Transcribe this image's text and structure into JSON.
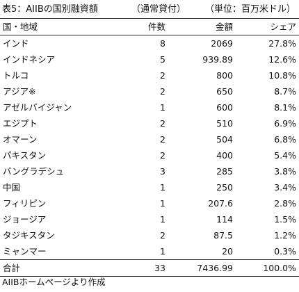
{
  "caption": {
    "title": "表5：AIIBの国別融資額",
    "type": "（通常貸付）",
    "unit": "（単位：百万米ドル）"
  },
  "headers": {
    "country": "国・地域",
    "count": "件数",
    "amount": "金額",
    "share": "シェア"
  },
  "rows": [
    {
      "country": "インド",
      "count": "8",
      "amount": "2069",
      "share": "27.8%"
    },
    {
      "country": "インドネシア",
      "count": "5",
      "amount": "939.89",
      "share": "12.6%"
    },
    {
      "country": "トルコ",
      "count": "2",
      "amount": "800",
      "share": "10.8%"
    },
    {
      "country": "アジア※",
      "count": "2",
      "amount": "650",
      "share": "8.7%"
    },
    {
      "country": "アゼルバイジャン",
      "count": "1",
      "amount": "600",
      "share": "8.1%"
    },
    {
      "country": "エジプト",
      "count": "2",
      "amount": "510",
      "share": "6.9%"
    },
    {
      "country": "オマーン",
      "count": "2",
      "amount": "504",
      "share": "6.8%"
    },
    {
      "country": "パキスタン",
      "count": "2",
      "amount": "400",
      "share": "5.4%"
    },
    {
      "country": "バングラデシュ",
      "count": "3",
      "amount": "285",
      "share": "3.8%"
    },
    {
      "country": "中国",
      "count": "1",
      "amount": "250",
      "share": "3.4%"
    },
    {
      "country": "フィリピン",
      "count": "1",
      "amount": "207.6",
      "share": "2.8%"
    },
    {
      "country": "ジョージア",
      "count": "1",
      "amount": "114",
      "share": "1.5%"
    },
    {
      "country": "タジキスタン",
      "count": "2",
      "amount": "87.5",
      "share": "1.2%"
    },
    {
      "country": "ミャンマー",
      "count": "1",
      "amount": "20",
      "share": "0.3%"
    }
  ],
  "total": {
    "label": "合計",
    "count": "33",
    "amount": "7436.99",
    "share": "100.0%"
  },
  "note": "AIIBホームページより作成"
}
